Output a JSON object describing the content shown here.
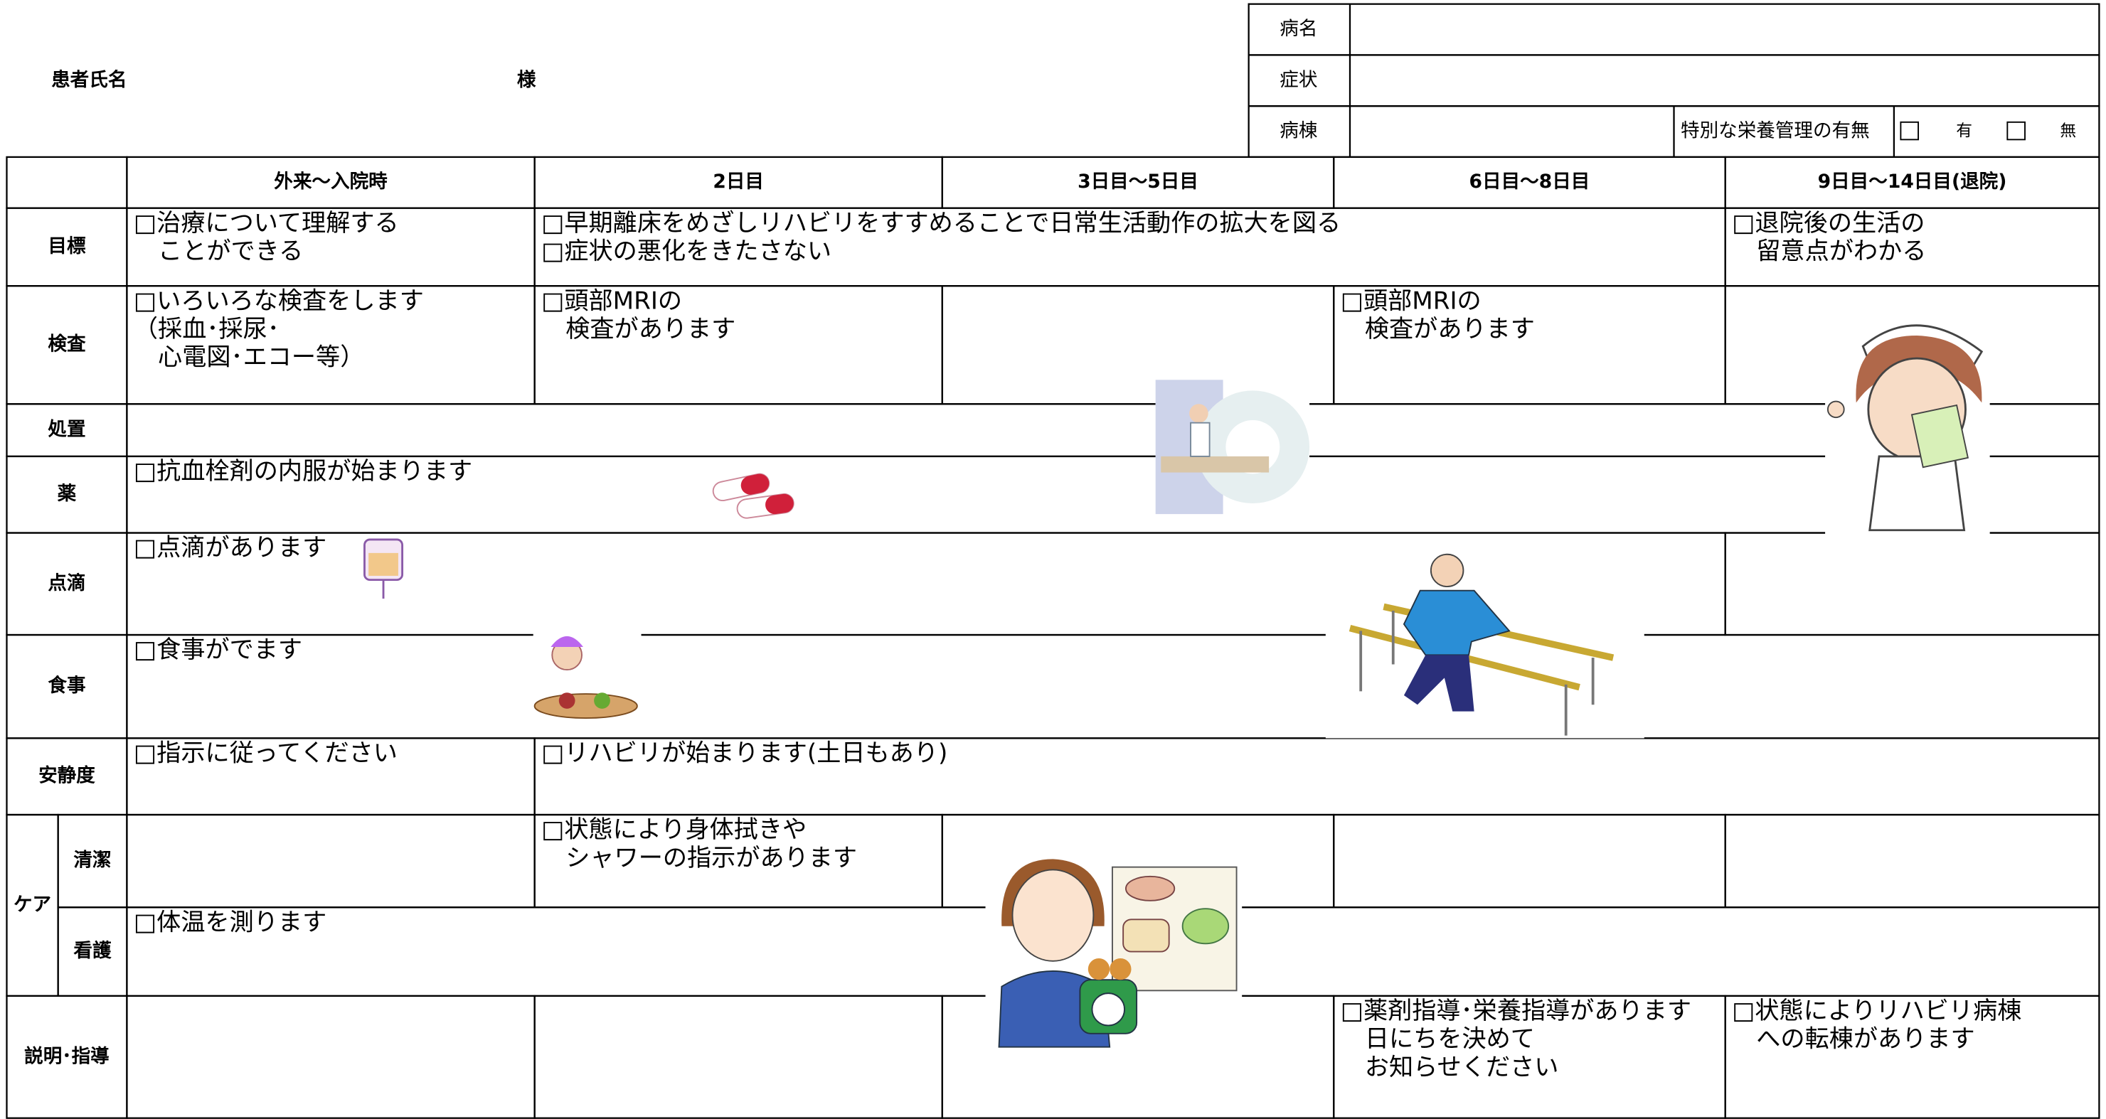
{
  "header": {
    "patient_label": "患者氏名",
    "honorific": "様",
    "fields": [
      {
        "label": "病名"
      },
      {
        "label": "症状"
      },
      {
        "label": "病棟"
      }
    ],
    "nutrition_label": "特別な栄養管理の有無",
    "options": [
      "有",
      "無"
    ]
  },
  "table": {
    "columns": [
      "外来～入院時",
      "2日目",
      "3日目～5日目",
      "6日目～8日目",
      "9日目～14日目(退院)"
    ],
    "rows": [
      {
        "label": "目標",
        "cells": [
          {
            "span": 1,
            "lines": [
              "□治療について理解する",
              "　ことができる"
            ]
          },
          {
            "span": 3,
            "lines": [
              "□早期離床をめざしリハビリをすすめることで日常生活動作の拡大を図る",
              "□症状の悪化をきたさない"
            ]
          },
          {
            "span": 1,
            "lines": [
              "□退院後の生活の",
              "　留意点がわかる"
            ]
          }
        ]
      },
      {
        "label": "検査",
        "cells": [
          {
            "span": 1,
            "lines": [
              "□いろいろな検査をします",
              "（採血･採尿･",
              "　心電図･エコー等）"
            ]
          },
          {
            "span": 1,
            "lines": [
              "□頭部MRIの",
              "　検査があります"
            ]
          },
          {
            "span": 1,
            "lines": []
          },
          {
            "span": 1,
            "lines": [
              "□頭部MRIの",
              "　検査があります"
            ]
          },
          {
            "span": 1,
            "lines": []
          }
        ]
      },
      {
        "label": "処置",
        "cells": [
          {
            "span": 5,
            "lines": []
          }
        ]
      },
      {
        "label": "薬",
        "cells": [
          {
            "span": 5,
            "lines": [
              "□抗血栓剤の内服が始まります"
            ]
          }
        ]
      },
      {
        "label": "点滴",
        "cells": [
          {
            "span": 4,
            "lines": [
              "□点滴があります"
            ]
          },
          {
            "span": 1,
            "lines": []
          }
        ]
      },
      {
        "label": "食事",
        "cells": [
          {
            "span": 5,
            "lines": [
              "□食事がでます"
            ]
          }
        ]
      },
      {
        "label": "安静度",
        "cells": [
          {
            "span": 1,
            "lines": [
              "□指示に従ってください"
            ]
          },
          {
            "span": 4,
            "lines": [
              "□リハビリが始まります(土日もあり)"
            ]
          }
        ]
      },
      {
        "label": "ケア",
        "subrows": [
          {
            "label": "清潔",
            "cells": [
              {
                "span": 1,
                "lines": []
              },
              {
                "span": 1,
                "lines": [
                  "□状態により身体拭きや",
                  "　シャワーの指示があります"
                ]
              },
              {
                "span": 1,
                "lines": []
              },
              {
                "span": 1,
                "lines": []
              },
              {
                "span": 1,
                "lines": []
              }
            ]
          },
          {
            "label": "看護",
            "cells": [
              {
                "span": 5,
                "lines": [
                  "□体温を測ります"
                ]
              }
            ]
          }
        ]
      },
      {
        "label": "説明･指導",
        "cells": [
          {
            "span": 1,
            "lines": []
          },
          {
            "span": 1,
            "lines": []
          },
          {
            "span": 1,
            "lines": []
          },
          {
            "span": 1,
            "lines": [
              "□薬剤指導･栄養指導があります",
              "　日にちを決めて",
              "　お知らせください"
            ]
          },
          {
            "span": 1,
            "lines": [
              "□状態によりリハビリ病棟",
              "　への転棟があります"
            ]
          }
        ]
      }
    ]
  }
}
